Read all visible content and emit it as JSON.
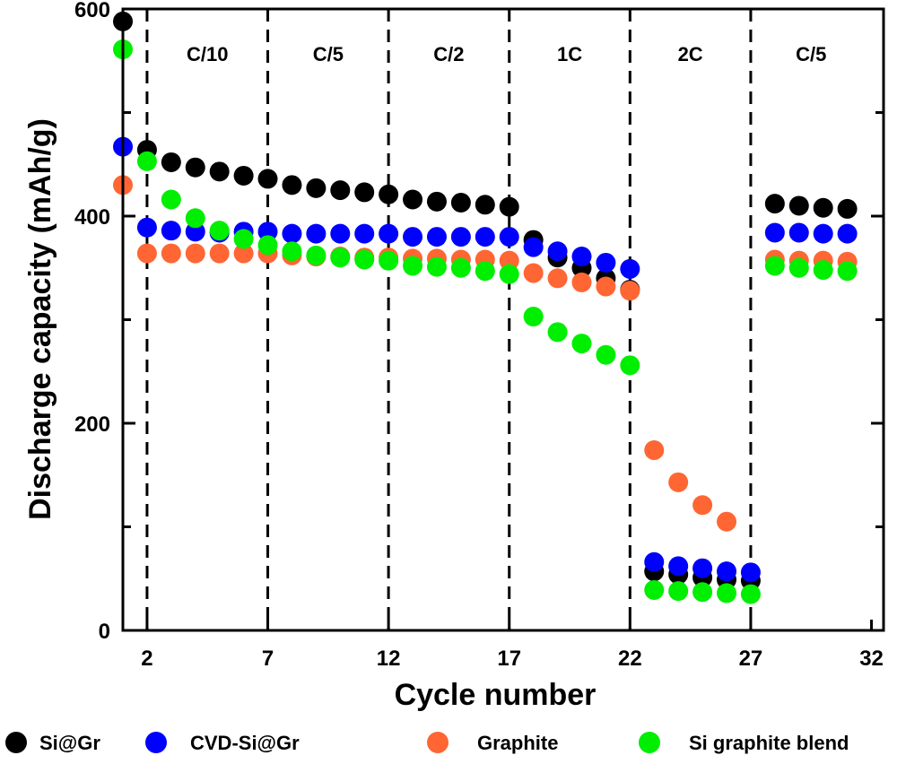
{
  "chart_data": {
    "type": "scatter",
    "title": "",
    "xlabel": "Cycle number",
    "ylabel": "Discharge capacity (mAh/g)",
    "xlim": [
      1,
      32.5
    ],
    "ylim": [
      0,
      600
    ],
    "xticks": [
      2,
      7,
      12,
      17,
      22,
      27,
      32
    ],
    "yticks": [
      0,
      200,
      400,
      600
    ],
    "yminor": [
      100,
      300,
      500
    ],
    "grid": false,
    "legend_placement": "bottom",
    "rate_dividers": [
      2,
      7,
      12,
      17,
      22,
      27
    ],
    "rate_labels": [
      {
        "label": "C/10",
        "x": 4.5
      },
      {
        "label": "C/5",
        "x": 9.5
      },
      {
        "label": "C/2",
        "x": 14.5
      },
      {
        "label": "1C",
        "x": 19.5
      },
      {
        "label": "2C",
        "x": 24.5
      },
      {
        "label": "C/5",
        "x": 29.5
      }
    ],
    "x": [
      1,
      2,
      3,
      4,
      5,
      6,
      7,
      8,
      9,
      10,
      11,
      12,
      13,
      14,
      15,
      16,
      17,
      18,
      19,
      20,
      21,
      22,
      23,
      24,
      25,
      26,
      27,
      28,
      29,
      30,
      31
    ],
    "series": [
      {
        "name": "Si@Gr",
        "color": "#000000",
        "values": [
          588,
          464,
          452,
          447,
          443,
          439,
          436,
          430,
          427,
          425,
          423,
          421,
          416,
          414,
          413,
          411,
          409,
          377,
          360,
          350,
          340,
          329,
          57,
          54,
          51,
          49,
          48,
          412,
          410,
          408,
          407
        ]
      },
      {
        "name": "CVD-Si@Gr",
        "color": "#0000ff",
        "values": [
          467,
          389,
          386,
          385,
          384,
          385,
          385,
          383,
          383,
          383,
          383,
          383,
          380,
          380,
          380,
          380,
          380,
          370,
          366,
          361,
          355,
          349,
          66,
          62,
          60,
          57,
          56,
          384,
          384,
          383,
          383
        ]
      },
      {
        "name": "Graphite",
        "color": "#ff6633",
        "values": [
          430,
          364,
          364,
          364,
          364,
          364,
          364,
          362,
          361,
          361,
          360,
          360,
          359,
          359,
          358,
          358,
          357,
          345,
          340,
          336,
          332,
          328,
          174,
          143,
          121,
          105,
          null,
          358,
          357,
          357,
          356
        ]
      },
      {
        "name": "Si graphite blend",
        "color": "#00ee00",
        "values": [
          561,
          453,
          416,
          398,
          386,
          378,
          372,
          366,
          362,
          360,
          358,
          357,
          352,
          351,
          350,
          347,
          344,
          303,
          288,
          277,
          266,
          256,
          39,
          38,
          37,
          36,
          35,
          352,
          350,
          348,
          347
        ]
      }
    ]
  }
}
